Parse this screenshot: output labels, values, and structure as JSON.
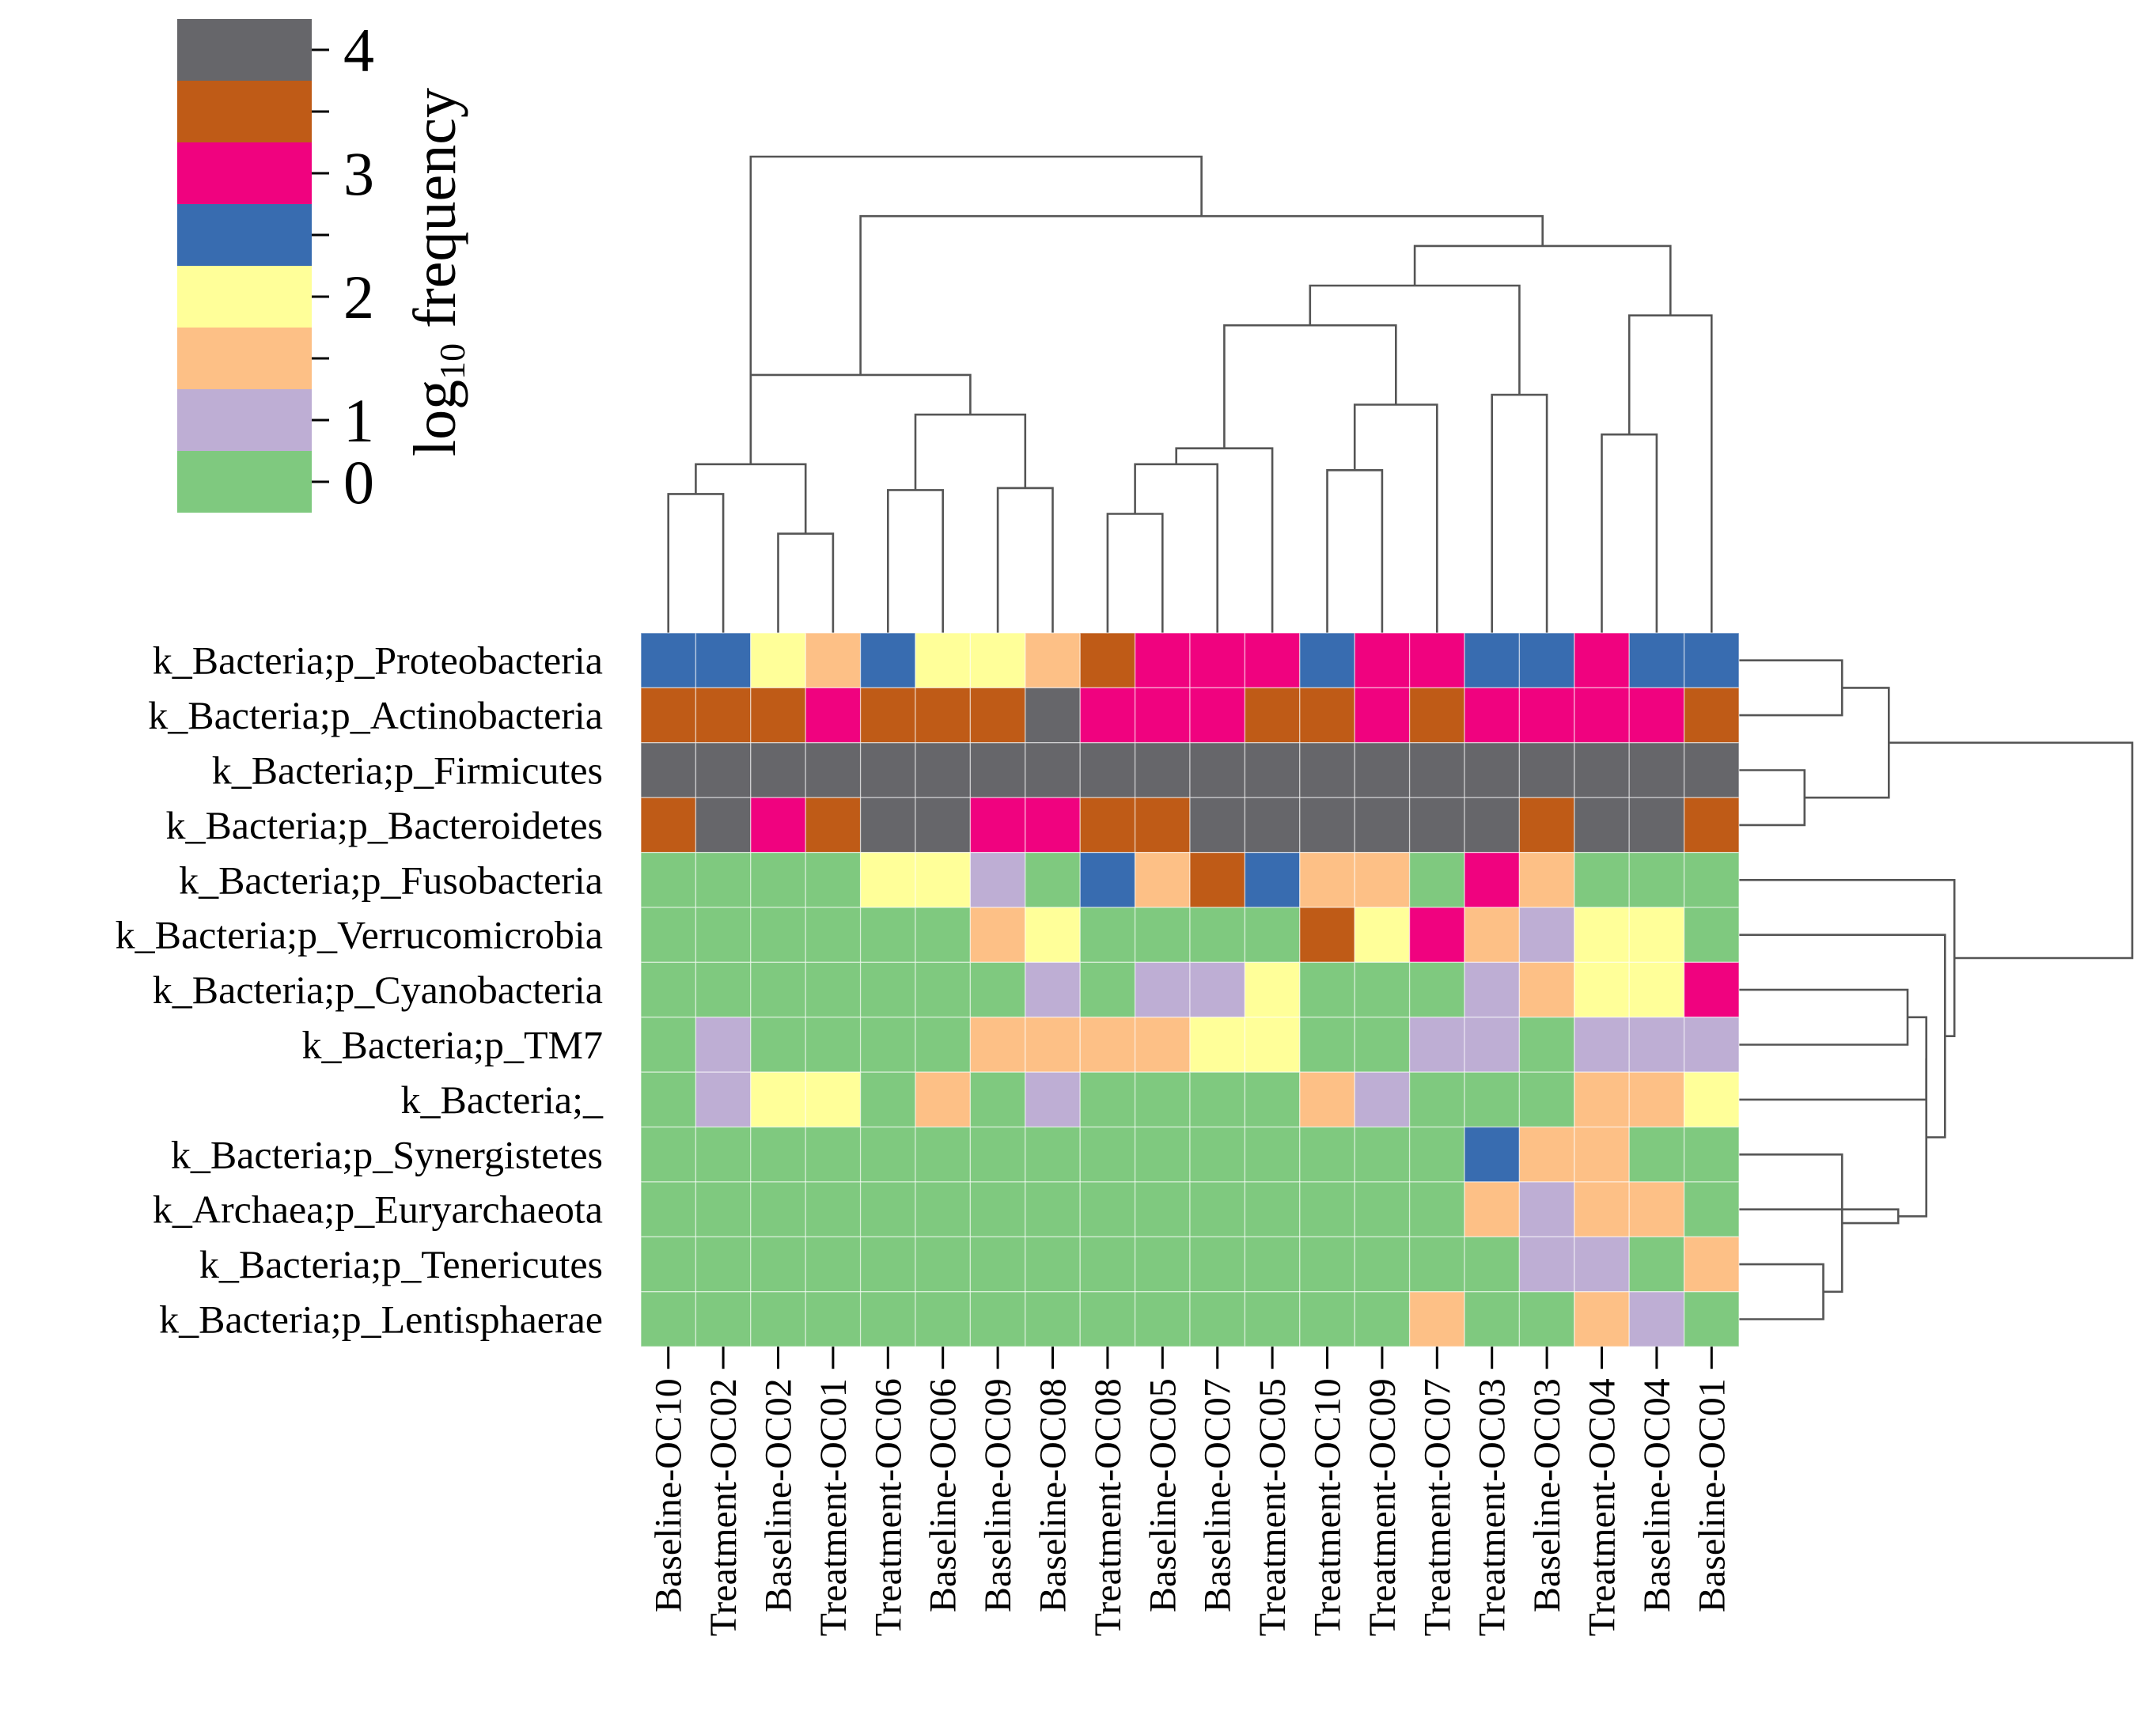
{
  "chart_data": {
    "type": "heatmap",
    "title": "",
    "legend": {
      "title": "log10 frequency",
      "title_main": "log",
      "title_sub": "10",
      "title_rest": " frequency",
      "ticks": [
        "4",
        "3",
        "2",
        "1",
        "0"
      ],
      "levels": [
        {
          "color": "#66666a",
          "label": "4"
        },
        {
          "color": "#bf5b17",
          "label": ""
        },
        {
          "color": "#f0027f",
          "label": "3"
        },
        {
          "color": "#386cb0",
          "label": ""
        },
        {
          "color": "#ffff99",
          "label": "2"
        },
        {
          "color": "#fdc086",
          "label": ""
        },
        {
          "color": "#beaed4",
          "label": "1"
        },
        {
          "color": "#7fc97f",
          "label": "0"
        }
      ]
    },
    "rows": [
      "k_Bacteria;p_Proteobacteria",
      "k_Bacteria;p_Actinobacteria",
      "k_Bacteria;p_Firmicutes",
      "k_Bacteria;p_Bacteroidetes",
      "k_Bacteria;p_Fusobacteria",
      "k_Bacteria;p_Verrucomicrobia",
      "k_Bacteria;p_Cyanobacteria",
      "k_Bacteria;p_TM7",
      "k_Bacteria;_",
      "k_Bacteria;p_Synergistetes",
      "k_Archaea;p_Euryarchaeota",
      "k_Bacteria;p_Tenericutes",
      "k_Bacteria;p_Lentisphaerae"
    ],
    "columns": [
      "Baseline-OC10",
      "Treatment-OC02",
      "Baseline-OC02",
      "Treatment-OC01",
      "Treatment-OC06",
      "Baseline-OC06",
      "Baseline-OC09",
      "Baseline-OC08",
      "Treatment-OC08",
      "Baseline-OC05",
      "Baseline-OC07",
      "Treatment-OC05",
      "Treatment-OC10",
      "Treatment-OC09",
      "Treatment-OC07",
      "Treatment-OC03",
      "Baseline-OC03",
      "Treatment-OC04",
      "Baseline-OC04",
      "Baseline-OC01"
    ],
    "level_values": [
      4,
      3.5,
      3,
      2.5,
      2,
      1.5,
      1,
      0
    ],
    "cells": [
      [
        3,
        3,
        4,
        5,
        3,
        4,
        4,
        5,
        1,
        2,
        2,
        2,
        3,
        2,
        2,
        3,
        3,
        2,
        3,
        3
      ],
      [
        1,
        1,
        1,
        2,
        1,
        1,
        1,
        0,
        2,
        2,
        2,
        1,
        1,
        2,
        1,
        2,
        2,
        2,
        2,
        1
      ],
      [
        0,
        0,
        0,
        0,
        0,
        0,
        0,
        0,
        0,
        0,
        0,
        0,
        0,
        0,
        0,
        0,
        0,
        0,
        0,
        0
      ],
      [
        1,
        0,
        2,
        1,
        0,
        0,
        2,
        2,
        1,
        1,
        0,
        0,
        0,
        0,
        0,
        0,
        1,
        0,
        0,
        1
      ],
      [
        7,
        7,
        7,
        7,
        4,
        4,
        6,
        7,
        3,
        5,
        1,
        3,
        5,
        5,
        7,
        2,
        5,
        7,
        7,
        7
      ],
      [
        7,
        7,
        7,
        7,
        7,
        7,
        5,
        4,
        7,
        7,
        7,
        7,
        1,
        4,
        2,
        5,
        6,
        4,
        4,
        7
      ],
      [
        7,
        7,
        7,
        7,
        7,
        7,
        7,
        6,
        7,
        6,
        6,
        4,
        7,
        7,
        7,
        6,
        5,
        4,
        4,
        2
      ],
      [
        7,
        6,
        7,
        7,
        7,
        7,
        5,
        5,
        5,
        5,
        4,
        4,
        7,
        7,
        6,
        6,
        7,
        6,
        6,
        6
      ],
      [
        7,
        6,
        4,
        4,
        7,
        5,
        7,
        6,
        7,
        7,
        7,
        7,
        5,
        6,
        7,
        7,
        7,
        5,
        5,
        4
      ],
      [
        7,
        7,
        7,
        7,
        7,
        7,
        7,
        7,
        7,
        7,
        7,
        7,
        7,
        7,
        7,
        3,
        5,
        5,
        7,
        7
      ],
      [
        7,
        7,
        7,
        7,
        7,
        7,
        7,
        7,
        7,
        7,
        7,
        7,
        7,
        7,
        7,
        5,
        6,
        5,
        5,
        7
      ],
      [
        7,
        7,
        7,
        7,
        7,
        7,
        7,
        7,
        7,
        7,
        7,
        7,
        7,
        7,
        7,
        7,
        6,
        6,
        7,
        5
      ],
      [
        7,
        7,
        7,
        7,
        7,
        7,
        7,
        7,
        7,
        7,
        7,
        7,
        7,
        7,
        5,
        7,
        7,
        5,
        6,
        7
      ]
    ],
    "column_dendrogram": [
      [
        2,
        3,
        0.5
      ],
      [
        0,
        1,
        0.7
      ],
      [
        -1,
        -2,
        0.85
      ],
      [
        4,
        5,
        0.72
      ],
      [
        6,
        7,
        0.73
      ],
      [
        -4,
        -5,
        1.1
      ],
      [
        -3,
        -6,
        1.3
      ],
      [
        8,
        9,
        0.6
      ],
      [
        10,
        -8,
        0.85
      ],
      [
        11,
        -9,
        0.93
      ],
      [
        12,
        13,
        0.82
      ],
      [
        14,
        -11,
        1.15
      ],
      [
        -10,
        -12,
        1.55
      ],
      [
        15,
        16,
        1.2
      ],
      [
        17,
        18,
        1.0
      ],
      [
        19,
        -15,
        1.6
      ],
      [
        -13,
        -14,
        1.75
      ],
      [
        -16,
        -17,
        1.95
      ],
      [
        -7,
        -18,
        2.1
      ],
      [
        -19,
        -3,
        2.4
      ]
    ],
    "row_dendrogram": [
      [
        2,
        3,
        0.35
      ],
      [
        0,
        1,
        0.55
      ],
      [
        -1,
        -2,
        0.8
      ],
      [
        7,
        6,
        0.9
      ],
      [
        -4,
        8,
        1.0
      ],
      [
        11,
        12,
        0.45
      ],
      [
        -6,
        9,
        0.55
      ],
      [
        10,
        -7,
        0.85
      ],
      [
        -5,
        -8,
        1.0
      ],
      [
        5,
        -9,
        1.1
      ],
      [
        4,
        -10,
        1.15
      ],
      [
        -11,
        -3,
        2.1
      ]
    ]
  }
}
